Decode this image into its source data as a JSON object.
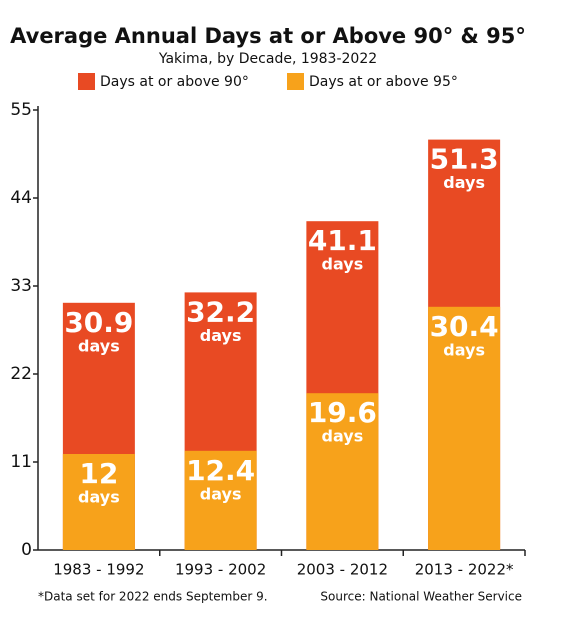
{
  "chart_data": {
    "type": "overlay_bar",
    "title": "Average Annual Days at or Above 90° & 95°",
    "subtitle": "Yakima, by Decade, 1983-2022",
    "categories": [
      "1983 - 1992",
      "1993 - 2002",
      "2003 - 2012",
      "2013 - 2022*"
    ],
    "series": [
      {
        "name": "Days at or above 90°",
        "color": "#e84a23",
        "values": [
          30.9,
          32.2,
          41.1,
          51.3
        ]
      },
      {
        "name": "Days at or above 95°",
        "color": "#f7a21b",
        "values": [
          12,
          12.4,
          19.6,
          30.4
        ]
      }
    ],
    "unit_label": "days",
    "ylim": [
      0,
      55
    ],
    "yticks": [
      0,
      11,
      22,
      33,
      44,
      55
    ],
    "footnote": "*Data set for 2022 ends September 9.",
    "source": "Source: National Weather Service"
  }
}
